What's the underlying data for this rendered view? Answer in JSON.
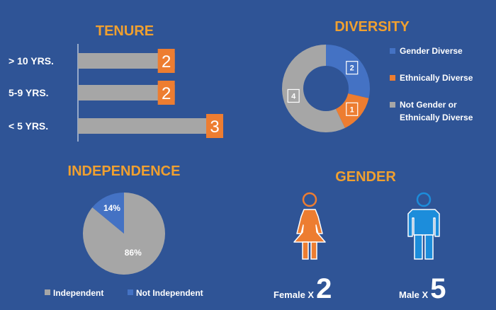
{
  "colors": {
    "background": "#2f5496",
    "orange": "#ed7d31",
    "title_orange": "#f0a030",
    "gray": "#a6a6a6",
    "blue": "#4472c4",
    "male_blue": "#1c8ddb",
    "white": "#ffffff"
  },
  "chart_data": [
    {
      "type": "bar",
      "orientation": "horizontal",
      "title": "TENURE",
      "categories": [
        "> 10 YRS.",
        "5-9 YRS.",
        "< 5 YRS."
      ],
      "values": [
        2,
        2,
        3
      ],
      "data_labels": [
        "2",
        "2",
        "3"
      ],
      "xlim": [
        0,
        3
      ]
    },
    {
      "type": "pie",
      "subtype": "donut",
      "title": "DIVERSITY",
      "categories": [
        "Gender Diverse",
        "Ethnically Diverse",
        "Not Gender or Ethnically Diverse"
      ],
      "values": [
        2,
        1,
        4
      ],
      "data_labels": [
        "2",
        "1",
        "4"
      ],
      "legend_lines": [
        [
          "Gender Diverse"
        ],
        [
          "Ethnically Diverse"
        ],
        [
          "Not Gender or",
          "Ethnically Diverse"
        ]
      ],
      "legend": "right"
    },
    {
      "type": "pie",
      "title": "INDEPENDENCE",
      "categories": [
        "Independent",
        "Not Independent"
      ],
      "values": [
        86,
        14
      ],
      "data_labels": [
        "86%",
        "14%"
      ],
      "legend": "bottom"
    },
    {
      "type": "table",
      "title": "GENDER",
      "categories": [
        "Female",
        "Male"
      ],
      "values": [
        2,
        5
      ],
      "prefix_labels": [
        "Female",
        "Male"
      ],
      "multiplier": "X"
    }
  ]
}
